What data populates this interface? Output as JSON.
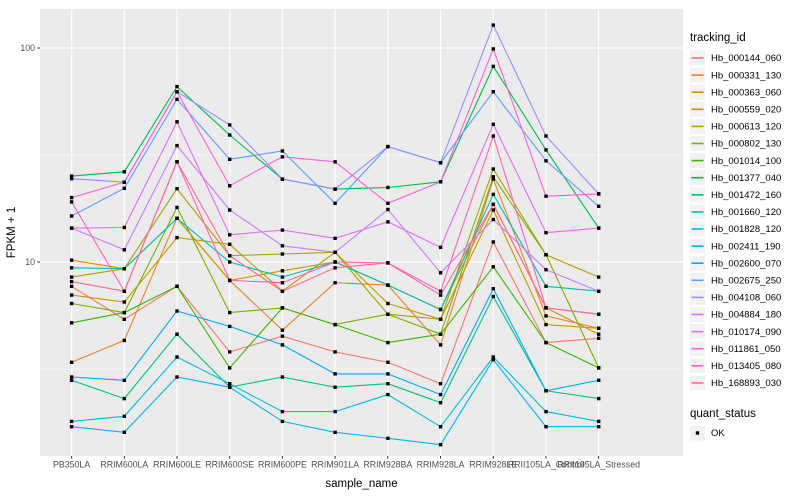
{
  "figure": {
    "background": "#FFFFFF",
    "panel_background": "#EBEBEB",
    "gridline_color": "#FFFFFF",
    "tick_color": "#333333",
    "tick_label_color": "#4D4D4D",
    "title_color": "#000000",
    "legend_key_background": "#F2F2F2"
  },
  "chart_data": {
    "type": "line",
    "title": "",
    "xlabel": "sample_name",
    "ylabel": "FPKM + 1",
    "y_scale": "log10",
    "y_tick_labels": [
      "10",
      "100"
    ],
    "y_ticks": [
      10,
      100
    ],
    "y_minor_ticks": [
      3.162,
      31.623
    ],
    "ylim": [
      1.1,
      150
    ],
    "grid": true,
    "legend_position": "right",
    "categories": [
      "PB350LA",
      "RRIM600LA",
      "RRIM600LE",
      "RRIM600SE",
      "RRIM600PE",
      "RRIM901LA",
      "RRIM928BA",
      "RRIM928LA",
      "RRIM928LE",
      "RRII105LA_Control",
      "RRII105LA_Stressed"
    ],
    "color_legend_title": "tracking_id",
    "shape_legend_title": "quant_status",
    "shape_legend_items": [
      {
        "label": "OK",
        "shape": "filled-square",
        "color": "#000000"
      }
    ],
    "marker": {
      "shape": "filled-square",
      "color": "#000000",
      "size": 3.4
    },
    "series": [
      {
        "name": "Hb_000144_060",
        "color": "#F8766D",
        "values": [
          7.7,
          5.4,
          7.7,
          3.8,
          4.5,
          3.8,
          3.4,
          2.7,
          12.4,
          4.2,
          4.4
        ]
      },
      {
        "name": "Hb_000331_130",
        "color": "#EA8331",
        "values": [
          3.4,
          4.3,
          16.0,
          8.2,
          4.8,
          8.0,
          7.8,
          4.1,
          24.4,
          5.6,
          4.9
        ]
      },
      {
        "name": "Hb_000363_060",
        "color": "#D89000",
        "values": [
          10.2,
          9.3,
          16.0,
          8.2,
          9.1,
          10.0,
          7.8,
          6.0,
          18.6,
          6.1,
          4.6
        ]
      },
      {
        "name": "Hb_000559_020",
        "color": "#C09B00",
        "values": [
          7.0,
          6.5,
          13.0,
          12.1,
          7.3,
          11.1,
          6.4,
          5.4,
          17.5,
          5.1,
          4.9
        ]
      },
      {
        "name": "Hb_000613_120",
        "color": "#A3A500",
        "values": [
          8.5,
          9.3,
          22.0,
          10.7,
          10.9,
          11.1,
          5.7,
          5.4,
          27.2,
          10.8,
          8.5
        ]
      },
      {
        "name": "Hb_000802_130",
        "color": "#7CAE00",
        "values": [
          6.4,
          5.8,
          18.0,
          5.8,
          6.1,
          5.1,
          5.7,
          4.6,
          25.0,
          10.8,
          3.2
        ]
      },
      {
        "name": "Hb_001014_100",
        "color": "#39B600",
        "values": [
          5.2,
          5.8,
          7.7,
          3.2,
          6.1,
          5.1,
          4.2,
          4.6,
          9.5,
          4.2,
          3.2
        ]
      },
      {
        "name": "Hb_001377_040",
        "color": "#00BB4E",
        "values": [
          25.2,
          26.4,
          66.0,
          39.2,
          24.4,
          21.9,
          22.3,
          23.7,
          82.0,
          33.4,
          14.4
        ]
      },
      {
        "name": "Hb_001472_160",
        "color": "#00C087",
        "values": [
          2.8,
          2.3,
          4.6,
          2.6,
          2.9,
          2.6,
          2.7,
          2.2,
          6.9,
          2.5,
          2.3
        ]
      },
      {
        "name": "Hb_001660_120",
        "color": "#00C0B2",
        "values": [
          9.4,
          9.3,
          16.0,
          10.0,
          8.5,
          10.0,
          7.8,
          6.0,
          20.7,
          7.7,
          7.3
        ]
      },
      {
        "name": "Hb_001828_120",
        "color": "#00BDD4",
        "values": [
          1.8,
          1.9,
          3.6,
          2.7,
          2.0,
          2.0,
          2.4,
          1.7,
          3.6,
          2.0,
          1.8
        ]
      },
      {
        "name": "Hb_002411_190",
        "color": "#00B5EE",
        "values": [
          1.7,
          1.6,
          2.9,
          2.6,
          1.8,
          1.6,
          1.5,
          1.4,
          3.5,
          1.7,
          1.7
        ]
      },
      {
        "name": "Hb_002600_070",
        "color": "#00A9FF",
        "values": [
          2.9,
          2.8,
          5.9,
          5.0,
          4.1,
          3.0,
          3.0,
          2.4,
          7.5,
          2.5,
          2.8
        ]
      },
      {
        "name": "Hb_002675_250",
        "color": "#619CFF",
        "values": [
          16.4,
          22.1,
          57.6,
          30.2,
          33.0,
          18.8,
          34.6,
          29.1,
          62.5,
          29.7,
          18.2
        ]
      },
      {
        "name": "Hb_004108_060",
        "color": "#9590FF",
        "values": [
          24.5,
          23.6,
          62.5,
          43.7,
          24.4,
          21.9,
          34.6,
          29.1,
          128.0,
          38.8,
          20.8
        ]
      },
      {
        "name": "Hb_004884_180",
        "color": "#C77CFF",
        "values": [
          14.4,
          11.4,
          35.0,
          17.5,
          11.9,
          11.1,
          17.6,
          8.9,
          15.8,
          9.2,
          7.3
        ]
      },
      {
        "name": "Hb_010174_090",
        "color": "#E76BF3",
        "values": [
          14.4,
          14.5,
          45.2,
          13.4,
          14.1,
          12.9,
          15.4,
          11.7,
          44.0,
          13.7,
          14.4
        ]
      },
      {
        "name": "Hb_011861_050",
        "color": "#FA62DB",
        "values": [
          20.0,
          23.6,
          62.5,
          22.7,
          31.0,
          29.4,
          18.8,
          23.7,
          99.0,
          20.3,
          20.8
        ]
      },
      {
        "name": "Hb_013405_080",
        "color": "#FF62BC",
        "values": [
          19.1,
          7.3,
          29.4,
          8.2,
          8.0,
          10.0,
          9.9,
          7.3,
          38.8,
          6.1,
          5.7
        ]
      },
      {
        "name": "Hb_168893_030",
        "color": "#FF6A98",
        "values": [
          8.1,
          7.3,
          29.4,
          10.7,
          7.3,
          9.4,
          9.9,
          7.0,
          18.6,
          6.1,
          5.7
        ]
      }
    ]
  }
}
